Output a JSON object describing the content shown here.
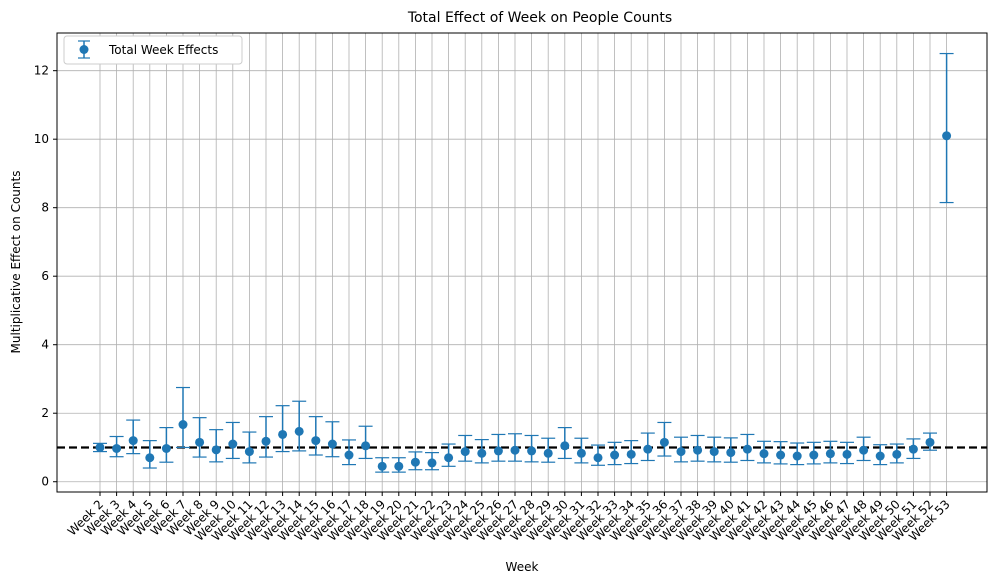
{
  "chart_data": {
    "type": "errorbar",
    "title": "Total Effect of Week on People Counts",
    "xlabel": "Week",
    "ylabel": "Multiplicative Effect on Counts",
    "ylim": [
      -0.3,
      13.1
    ],
    "yticks": [
      0,
      2,
      4,
      6,
      8,
      10,
      12
    ],
    "grid": true,
    "legend": {
      "position": "top-left",
      "label": "Total Week Effects"
    },
    "reference_line": {
      "y": 1,
      "style": "dashed",
      "color": "#000000"
    },
    "series_color": "#1f77b4",
    "categories": [
      "Week 2",
      "Week 3",
      "Week 4",
      "Week 5",
      "Week 6",
      "Week 7",
      "Week 8",
      "Week 9",
      "Week 10",
      "Week 11",
      "Week 12",
      "Week 13",
      "Week 14",
      "Week 15",
      "Week 16",
      "Week 17",
      "Week 18",
      "Week 19",
      "Week 20",
      "Week 21",
      "Week 22",
      "Week 23",
      "Week 24",
      "Week 25",
      "Week 26",
      "Week 27",
      "Week 28",
      "Week 29",
      "Week 30",
      "Week 31",
      "Week 32",
      "Week 33",
      "Week 34",
      "Week 35",
      "Week 36",
      "Week 37",
      "Week 38",
      "Week 39",
      "Week 40",
      "Week 41",
      "Week 42",
      "Week 43",
      "Week 44",
      "Week 45",
      "Week 46",
      "Week 47",
      "Week 48",
      "Week 49",
      "Week 50",
      "Week 51",
      "Week 52",
      "Week 53"
    ],
    "values": [
      1.0,
      0.97,
      1.2,
      0.7,
      0.97,
      1.67,
      1.15,
      0.93,
      1.1,
      0.88,
      1.18,
      1.38,
      1.47,
      1.2,
      1.1,
      0.78,
      1.05,
      0.45,
      0.45,
      0.57,
      0.55,
      0.7,
      0.88,
      0.83,
      0.9,
      0.92,
      0.9,
      0.83,
      1.05,
      0.83,
      0.7,
      0.78,
      0.8,
      0.95,
      1.15,
      0.88,
      0.92,
      0.88,
      0.85,
      0.95,
      0.82,
      0.78,
      0.75,
      0.78,
      0.82,
      0.8,
      0.92,
      0.75,
      0.8,
      0.95,
      1.15,
      10.1
    ],
    "lower": [
      0.88,
      0.73,
      0.82,
      0.4,
      0.57,
      1.0,
      0.72,
      0.58,
      0.68,
      0.55,
      0.72,
      0.88,
      0.9,
      0.78,
      0.73,
      0.5,
      0.68,
      0.28,
      0.28,
      0.35,
      0.35,
      0.45,
      0.6,
      0.55,
      0.6,
      0.6,
      0.58,
      0.57,
      0.68,
      0.55,
      0.48,
      0.5,
      0.53,
      0.62,
      0.75,
      0.58,
      0.6,
      0.58,
      0.57,
      0.62,
      0.55,
      0.52,
      0.5,
      0.52,
      0.55,
      0.53,
      0.62,
      0.5,
      0.55,
      0.68,
      0.92,
      8.15
    ],
    "upper": [
      1.12,
      1.32,
      1.8,
      1.2,
      1.58,
      2.75,
      1.87,
      1.52,
      1.73,
      1.45,
      1.9,
      2.22,
      2.35,
      1.9,
      1.75,
      1.22,
      1.62,
      0.7,
      0.7,
      0.87,
      0.85,
      1.1,
      1.35,
      1.23,
      1.38,
      1.4,
      1.35,
      1.27,
      1.58,
      1.27,
      1.07,
      1.15,
      1.2,
      1.42,
      1.73,
      1.3,
      1.35,
      1.3,
      1.28,
      1.38,
      1.18,
      1.17,
      1.13,
      1.15,
      1.18,
      1.15,
      1.3,
      1.08,
      1.1,
      1.25,
      1.42,
      12.5
    ]
  }
}
